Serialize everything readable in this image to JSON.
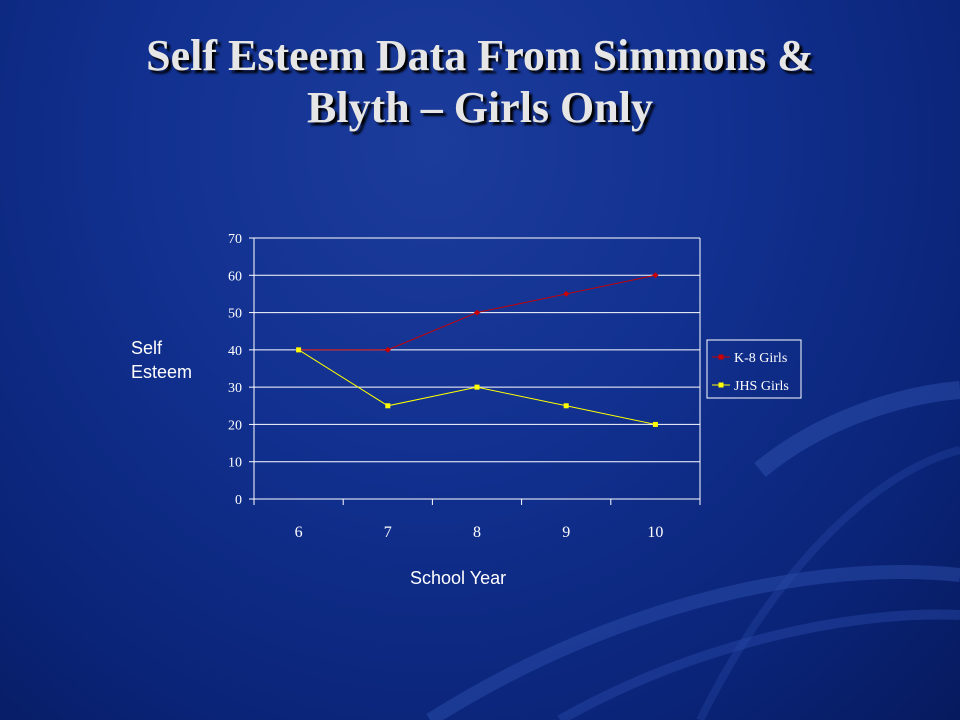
{
  "slide": {
    "title_line1": "Self Esteem Data From Simmons &",
    "title_line2": "Blyth – Girls Only"
  },
  "chart_data": {
    "type": "line",
    "categories": [
      "6",
      "7",
      "8",
      "9",
      "10"
    ],
    "series": [
      {
        "name": "K-8 Girls",
        "values": [
          40,
          40,
          50,
          55,
          60
        ],
        "color": "#cc0000",
        "marker": "diamond"
      },
      {
        "name": "JHS Girls",
        "values": [
          40,
          25,
          30,
          25,
          20
        ],
        "color": "#ffff00",
        "marker": "square"
      }
    ],
    "ylim": [
      0,
      70
    ],
    "yticks": [
      0,
      10,
      20,
      30,
      40,
      50,
      60,
      70
    ],
    "xlabel": "School Year",
    "ylabel_lines": [
      "Self",
      "Esteem"
    ],
    "grid": true,
    "legend": "right"
  },
  "colors": {
    "axis": "#ffffff",
    "grid": "#ffffff",
    "tick_label": "#ffffff"
  }
}
